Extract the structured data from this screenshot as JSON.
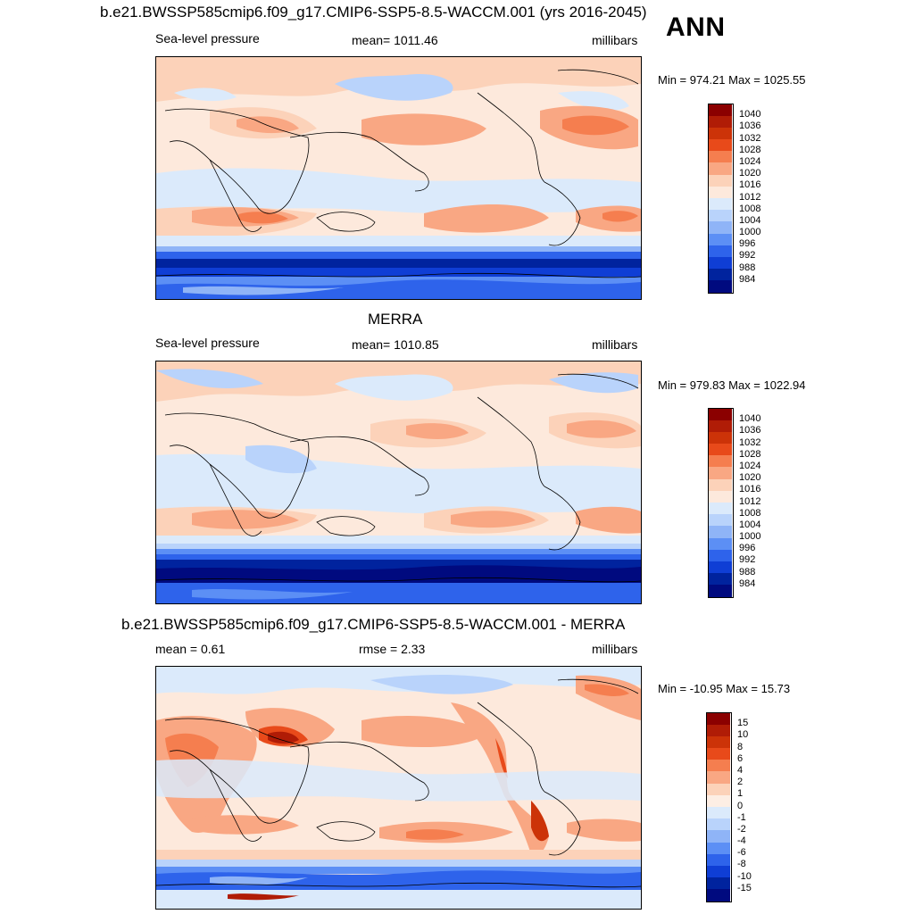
{
  "header": {
    "title": "b.e21.BWSSP585cmip6.f09_g17.CMIP6-SSP5-8.5-WACCM.001 (yrs 2016-2045)",
    "season": "ANN"
  },
  "panels": [
    {
      "id": "model",
      "title": "",
      "left_label": "Sea-level pressure",
      "center_label": "mean= 1011.46",
      "right_label": "millibars",
      "minmax": "Min = 974.21 Max = 1025.55",
      "colorbar_labels": [
        "1040",
        "1036",
        "1032",
        "1028",
        "1024",
        "1020",
        "1016",
        "1012",
        "1008",
        "1004",
        "1000",
        "996",
        "992",
        "988",
        "984"
      ],
      "colorbar_colors": [
        "#8b0000",
        "#b01c06",
        "#cc3308",
        "#e84a1a",
        "#f57e4f",
        "#f9a783",
        "#fcd2b9",
        "#fde9dc",
        "#dbeafb",
        "#b9d3fb",
        "#8fb4f7",
        "#5c8ff5",
        "#2e63eb",
        "#0f3ed5",
        "#00239e",
        "#000a7f"
      ]
    },
    {
      "id": "obs",
      "title": "MERRA",
      "left_label": "Sea-level pressure",
      "center_label": "mean= 1010.85",
      "right_label": "millibars",
      "minmax": "Min = 979.83 Max = 1022.94",
      "colorbar_labels": [
        "1040",
        "1036",
        "1032",
        "1028",
        "1024",
        "1020",
        "1016",
        "1012",
        "1008",
        "1004",
        "1000",
        "996",
        "992",
        "988",
        "984"
      ],
      "colorbar_colors": [
        "#8b0000",
        "#b01c06",
        "#cc3308",
        "#e84a1a",
        "#f57e4f",
        "#f9a783",
        "#fcd2b9",
        "#fde9dc",
        "#dbeafb",
        "#b9d3fb",
        "#8fb4f7",
        "#5c8ff5",
        "#2e63eb",
        "#0f3ed5",
        "#00239e",
        "#000a7f"
      ]
    },
    {
      "id": "diff",
      "title": "b.e21.BWSSP585cmip6.f09_g17.CMIP6-SSP5-8.5-WACCM.001 - MERRA",
      "left_label": "mean =   0.61",
      "center_label": "rmse =   2.33",
      "right_label": "millibars",
      "minmax": "Min = -10.95 Max =  15.73",
      "colorbar_labels": [
        "15",
        "10",
        "8",
        "6",
        "4",
        "2",
        "1",
        "0",
        "-1",
        "-2",
        "-4",
        "-6",
        "-8",
        "-10",
        "-15"
      ],
      "colorbar_colors": [
        "#8b0000",
        "#b01c06",
        "#cc3308",
        "#e84a1a",
        "#f57e4f",
        "#f9a783",
        "#fcd2b9",
        "#fdeee4",
        "#dbeafb",
        "#b9d3fb",
        "#8fb4f7",
        "#5c8ff5",
        "#2e63eb",
        "#0f3ed5",
        "#00239e",
        "#000a7f"
      ]
    }
  ]
}
